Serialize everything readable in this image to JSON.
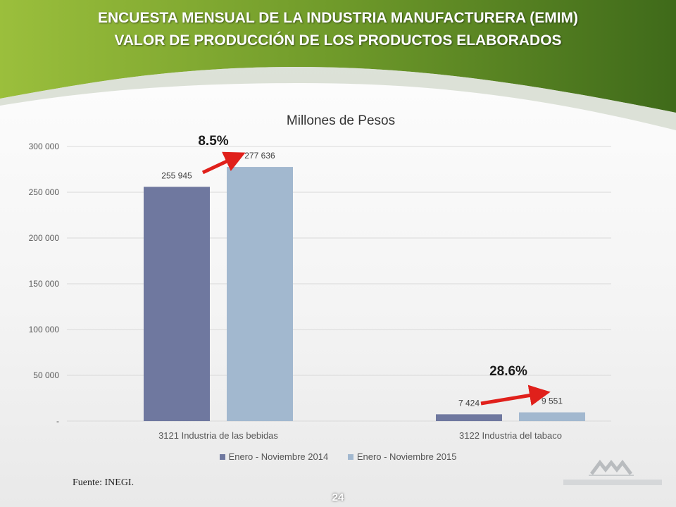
{
  "header": {
    "title_line1": "ENCUESTA MENSUAL DE LA INDUSTRIA MANUFACTURERA (EMIM)",
    "title_line2": "VALOR DE PRODUCCIÓN DE LOS PRODUCTOS ELABORADOS"
  },
  "chart_data": {
    "type": "bar",
    "title": "Millones de Pesos",
    "categories": [
      "3121 Industria de las bebidas",
      "3122 Industria del tabaco"
    ],
    "series": [
      {
        "name": "Enero - Noviembre 2014",
        "values": [
          255945,
          7424
        ],
        "labels": [
          "255 945",
          "7 424"
        ],
        "color": "#6f789f"
      },
      {
        "name": "Enero - Noviembre 2015",
        "values": [
          277636,
          9551
        ],
        "labels": [
          "277 636",
          "9 551"
        ],
        "color": "#a2b8cf"
      }
    ],
    "ylim": [
      0,
      300000
    ],
    "yticks": [
      0,
      50000,
      100000,
      150000,
      200000,
      250000,
      300000
    ],
    "ytick_labels": [
      "-",
      "50 000",
      "100 000",
      "150 000",
      "200 000",
      "250 000",
      "300 000"
    ],
    "growth": [
      "8.5%",
      "28.6%"
    ],
    "grid": true,
    "legend_position": "bottom"
  },
  "footer": {
    "source": "Fuente: INEGI.",
    "page_number": "24"
  }
}
